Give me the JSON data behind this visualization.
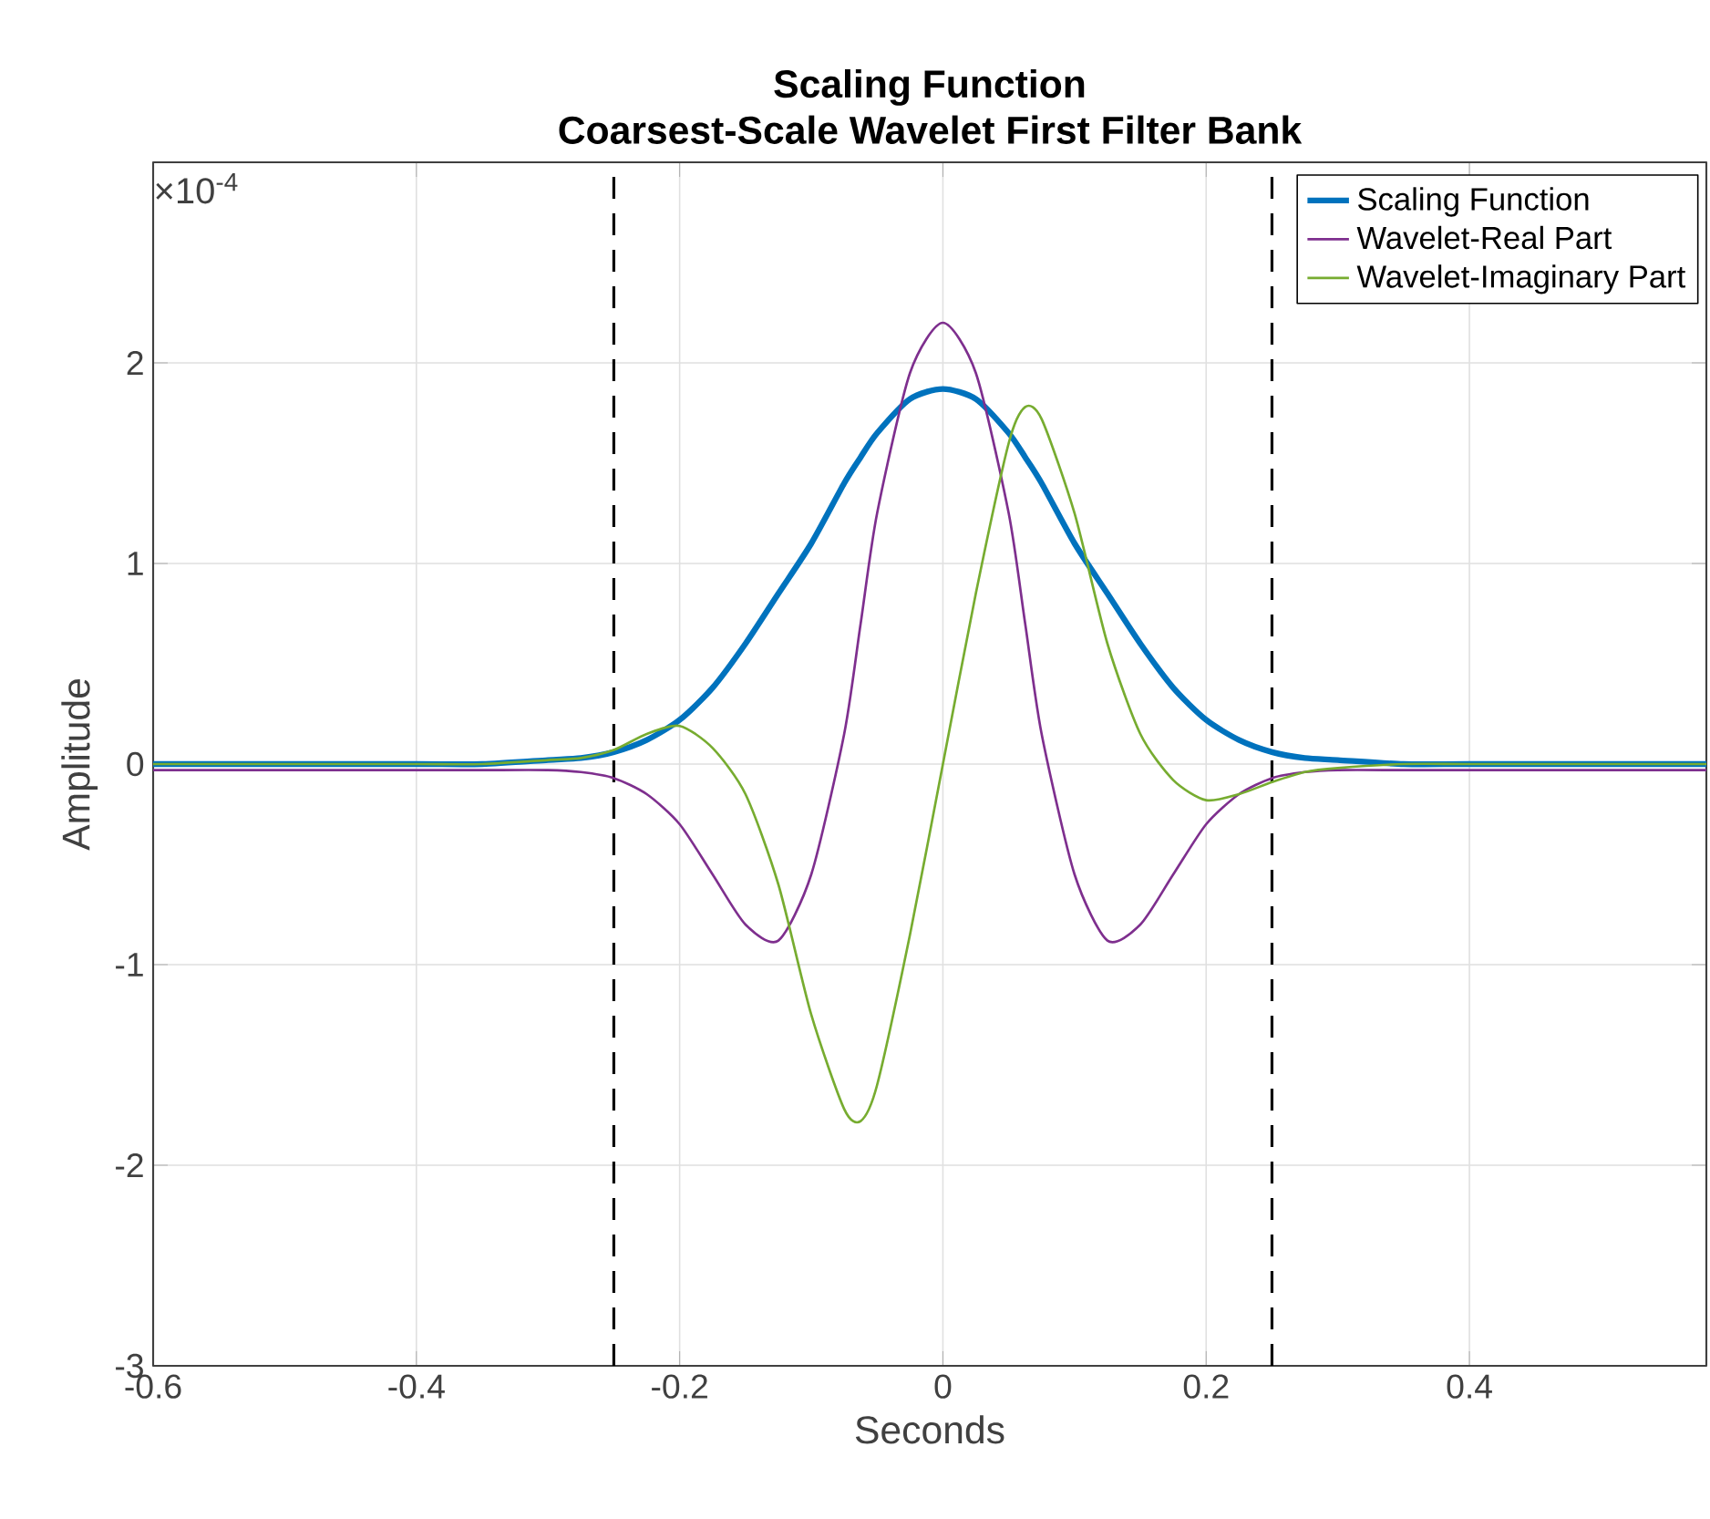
{
  "chart_data": {
    "type": "line",
    "title": "Scaling Function",
    "subtitle": "Coarsest-Scale Wavelet First Filter Bank",
    "xlabel": "Seconds",
    "ylabel": "Amplitude",
    "annotations": [
      "×10$^{-4}$"
    ],
    "x": [
      -0.6,
      -0.5,
      -0.4,
      -0.35,
      -0.3,
      -0.275,
      -0.25,
      -0.225,
      -0.2,
      -0.175,
      -0.15,
      -0.125,
      -0.1,
      -0.075,
      -0.0625,
      -0.05,
      -0.025,
      0,
      0.025,
      0.05,
      0.0625,
      0.075,
      0.1,
      0.125,
      0.15,
      0.175,
      0.2,
      0.225,
      0.25,
      0.275,
      0.3,
      0.35,
      0.4,
      0.5,
      0.58
    ],
    "series": [
      {
        "name": "Scaling Function",
        "color": "#0072bd",
        "values": [
          0,
          0,
          0,
          0,
          0.02,
          0.03,
          0.06,
          0.12,
          0.22,
          0.38,
          0.6,
          0.85,
          1.1,
          1.4,
          1.53,
          1.65,
          1.82,
          1.87,
          1.82,
          1.65,
          1.53,
          1.4,
          1.1,
          0.85,
          0.6,
          0.38,
          0.22,
          0.12,
          0.06,
          0.03,
          0.02,
          0,
          0,
          0,
          0
        ]
      },
      {
        "name": "Wavelet-Real Part",
        "color": "#7e2f8e",
        "values": [
          -0.03,
          -0.03,
          -0.03,
          -0.03,
          -0.03,
          -0.04,
          -0.07,
          -0.15,
          -0.3,
          -0.55,
          -0.8,
          -0.88,
          -0.55,
          0.15,
          0.7,
          1.25,
          1.95,
          2.2,
          1.95,
          1.25,
          0.7,
          0.15,
          -0.55,
          -0.88,
          -0.8,
          -0.55,
          -0.3,
          -0.15,
          -0.07,
          -0.04,
          -0.03,
          -0.03,
          -0.03,
          -0.03,
          -0.03
        ]
      },
      {
        "name": "Wavelet-Imaginary Part",
        "color": "#77ac30",
        "values": [
          0,
          0,
          0,
          0,
          0.02,
          0.03,
          0.07,
          0.15,
          0.19,
          0.08,
          -0.15,
          -0.6,
          -1.25,
          -1.72,
          -1.78,
          -1.6,
          -0.85,
          0,
          0.85,
          1.6,
          1.78,
          1.72,
          1.25,
          0.6,
          0.15,
          -0.08,
          -0.18,
          -0.15,
          -0.09,
          -0.04,
          -0.02,
          0,
          0,
          0,
          0
        ]
      }
    ],
    "xlim": [
      -0.6,
      0.58
    ],
    "ylim": [
      -3,
      3
    ],
    "xticks": [
      -0.6,
      -0.4,
      -0.2,
      0,
      0.2,
      0.4
    ],
    "yticks": [
      -3,
      -2,
      -1,
      0,
      1,
      2
    ],
    "ref_lines": [
      {
        "axis": "x",
        "value": -0.25,
        "color": "#000000",
        "line_style": "dashed"
      },
      {
        "axis": "x",
        "value": 0.25,
        "color": "#000000",
        "line_style": "dashed"
      }
    ],
    "grid": true,
    "legend": "top right",
    "marker": "none",
    "line_style": "solid"
  }
}
